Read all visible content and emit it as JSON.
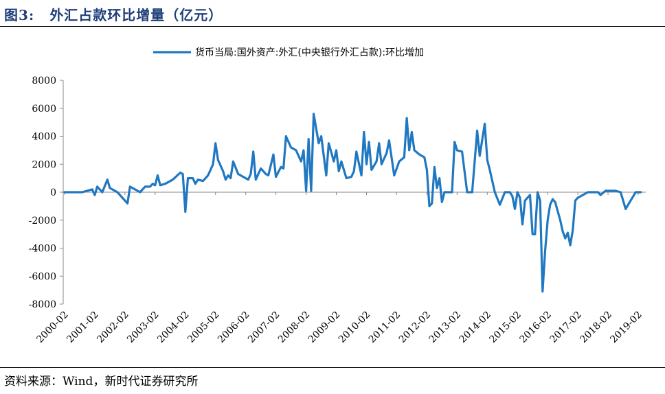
{
  "header": {
    "fig_label": "图3:",
    "title": "外汇占款环比增量（亿元）"
  },
  "source": "资料来源：Wind，新时代证券研究所",
  "chart_data": {
    "type": "line",
    "title": "外汇占款环比增量（亿元）",
    "series": [
      {
        "name": "货币当局:国外资产:外汇(中央银行外汇占款):环比增加",
        "color": "#1f78c1",
        "points": [
          [
            "2000-02",
            0
          ],
          [
            "2000-05",
            0
          ],
          [
            "2000-09",
            0
          ],
          [
            "2001-01",
            200
          ],
          [
            "2001-02",
            -200
          ],
          [
            "2001-03",
            400
          ],
          [
            "2001-05",
            0
          ],
          [
            "2001-07",
            900
          ],
          [
            "2001-08",
            300
          ],
          [
            "2001-11",
            0
          ],
          [
            "2002-03",
            -800
          ],
          [
            "2002-04",
            400
          ],
          [
            "2002-06",
            200
          ],
          [
            "2002-08",
            0
          ],
          [
            "2002-10",
            400
          ],
          [
            "2002-12",
            400
          ],
          [
            "2003-01",
            600
          ],
          [
            "2003-02",
            500
          ],
          [
            "2003-03",
            1200
          ],
          [
            "2003-04",
            500
          ],
          [
            "2003-06",
            600
          ],
          [
            "2003-09",
            900
          ],
          [
            "2003-12",
            1400
          ],
          [
            "2004-01",
            1300
          ],
          [
            "2004-02",
            -1400
          ],
          [
            "2004-03",
            1000
          ],
          [
            "2004-05",
            1000
          ],
          [
            "2004-06",
            600
          ],
          [
            "2004-07",
            900
          ],
          [
            "2004-09",
            800
          ],
          [
            "2004-11",
            1200
          ],
          [
            "2005-01",
            2000
          ],
          [
            "2005-02",
            3500
          ],
          [
            "2005-03",
            2300
          ],
          [
            "2005-05",
            1500
          ],
          [
            "2005-06",
            900
          ],
          [
            "2005-07",
            1200
          ],
          [
            "2005-08",
            1000
          ],
          [
            "2005-09",
            2200
          ],
          [
            "2005-11",
            1300
          ],
          [
            "2006-01",
            1100
          ],
          [
            "2006-03",
            900
          ],
          [
            "2006-04",
            1300
          ],
          [
            "2006-05",
            2900
          ],
          [
            "2006-06",
            900
          ],
          [
            "2006-08",
            1700
          ],
          [
            "2006-10",
            1300
          ],
          [
            "2006-11",
            1200
          ],
          [
            "2007-01",
            2700
          ],
          [
            "2007-02",
            1100
          ],
          [
            "2007-04",
            1800
          ],
          [
            "2007-05",
            1700
          ],
          [
            "2007-06",
            4000
          ],
          [
            "2007-08",
            3200
          ],
          [
            "2007-10",
            3000
          ],
          [
            "2007-12",
            2200
          ],
          [
            "2008-01",
            3000
          ],
          [
            "2008-02",
            100
          ],
          [
            "2008-03",
            3800
          ],
          [
            "2008-04",
            100
          ],
          [
            "2008-05",
            5600
          ],
          [
            "2008-07",
            3500
          ],
          [
            "2008-08",
            4000
          ],
          [
            "2008-10",
            1200
          ],
          [
            "2008-11",
            3500
          ],
          [
            "2009-01",
            2200
          ],
          [
            "2009-02",
            3000
          ],
          [
            "2009-03",
            1500
          ],
          [
            "2009-04",
            2200
          ],
          [
            "2009-06",
            1000
          ],
          [
            "2009-08",
            1100
          ],
          [
            "2009-09",
            1500
          ],
          [
            "2009-10",
            2900
          ],
          [
            "2009-12",
            1200
          ],
          [
            "2010-01",
            4300
          ],
          [
            "2010-02",
            2000
          ],
          [
            "2010-03",
            3600
          ],
          [
            "2010-04",
            1600
          ],
          [
            "2010-06",
            2200
          ],
          [
            "2010-07",
            3500
          ],
          [
            "2010-08",
            2000
          ],
          [
            "2010-10",
            2800
          ],
          [
            "2010-11",
            3700
          ],
          [
            "2011-01",
            1200
          ],
          [
            "2011-03",
            2200
          ],
          [
            "2011-05",
            2500
          ],
          [
            "2011-06",
            5300
          ],
          [
            "2011-07",
            3000
          ],
          [
            "2011-08",
            4300
          ],
          [
            "2011-09",
            3000
          ],
          [
            "2011-11",
            2700
          ],
          [
            "2012-01",
            2500
          ],
          [
            "2012-02",
            1600
          ],
          [
            "2012-03",
            -1000
          ],
          [
            "2012-04",
            -800
          ],
          [
            "2012-05",
            1800
          ],
          [
            "2012-06",
            300
          ],
          [
            "2012-07",
            1000
          ],
          [
            "2012-08",
            -700
          ],
          [
            "2012-09",
            0
          ],
          [
            "2012-12",
            0
          ],
          [
            "2013-01",
            3600
          ],
          [
            "2013-02",
            3000
          ],
          [
            "2013-04",
            2900
          ],
          [
            "2013-06",
            0
          ],
          [
            "2013-08",
            0
          ],
          [
            "2013-10",
            4400
          ],
          [
            "2013-11",
            2600
          ],
          [
            "2014-01",
            4900
          ],
          [
            "2014-02",
            2300
          ],
          [
            "2014-03",
            1600
          ],
          [
            "2014-05",
            0
          ],
          [
            "2014-07",
            -900
          ],
          [
            "2014-09",
            0
          ],
          [
            "2014-11",
            0
          ],
          [
            "2014-12",
            -300
          ],
          [
            "2015-01",
            -1200
          ],
          [
            "2015-02",
            0
          ],
          [
            "2015-03",
            -400
          ],
          [
            "2015-04",
            -2300
          ],
          [
            "2015-05",
            -600
          ],
          [
            "2015-07",
            -200
          ],
          [
            "2015-08",
            -3000
          ],
          [
            "2015-09",
            -3000
          ],
          [
            "2015-10",
            0
          ],
          [
            "2015-11",
            -600
          ],
          [
            "2015-12",
            -7100
          ],
          [
            "2016-01",
            -4200
          ],
          [
            "2016-02",
            -2000
          ],
          [
            "2016-03",
            -900
          ],
          [
            "2016-04",
            -500
          ],
          [
            "2016-05",
            -700
          ],
          [
            "2016-07",
            -2000
          ],
          [
            "2016-08",
            -2800
          ],
          [
            "2016-09",
            -3300
          ],
          [
            "2016-10",
            -2900
          ],
          [
            "2016-11",
            -3800
          ],
          [
            "2016-12",
            -2700
          ],
          [
            "2017-01",
            -600
          ],
          [
            "2017-02",
            -400
          ],
          [
            "2017-03",
            -300
          ],
          [
            "2017-05",
            -100
          ],
          [
            "2017-06",
            0
          ],
          [
            "2017-08",
            0
          ],
          [
            "2017-10",
            0
          ],
          [
            "2017-11",
            -200
          ],
          [
            "2018-01",
            100
          ],
          [
            "2018-03",
            100
          ],
          [
            "2018-05",
            100
          ],
          [
            "2018-07",
            0
          ],
          [
            "2018-09",
            -1200
          ],
          [
            "2018-11",
            -600
          ],
          [
            "2019-01",
            0
          ],
          [
            "2019-03",
            0
          ]
        ]
      }
    ],
    "ylim": [
      -8000,
      8000
    ],
    "yticks": [
      "8000",
      "6000",
      "4000",
      "2000",
      "0",
      "-2000",
      "-4000",
      "-6000",
      "-8000"
    ],
    "xticks": [
      "2000-02",
      "2001-02",
      "2002-02",
      "2003-02",
      "2004-02",
      "2005-02",
      "2006-02",
      "2007-02",
      "2008-02",
      "2009-02",
      "2010-02",
      "2011-02",
      "2012-02",
      "2013-02",
      "2014-02",
      "2015-02",
      "2016-02",
      "2017-02",
      "2018-02",
      "2019-02"
    ],
    "xlabel": "",
    "ylabel": "",
    "grid": false,
    "legend": "top-center"
  }
}
